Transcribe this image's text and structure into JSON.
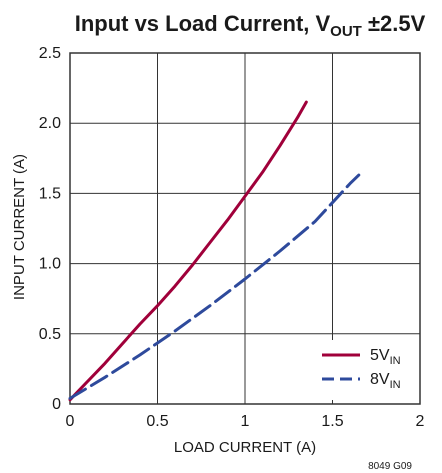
{
  "chart_data": {
    "type": "line",
    "title": {
      "prefix": "Input vs Load Current, V",
      "subscript": "OUT",
      "suffix": " ±2.5V"
    },
    "xlabel": "LOAD CURRENT (A)",
    "ylabel": "INPUT CURRENT (A)",
    "xlim": [
      0,
      2
    ],
    "ylim": [
      0,
      2.5
    ],
    "xticks": [
      0,
      0.5,
      1,
      1.5,
      2
    ],
    "xtick_labels": [
      "0",
      "0.5",
      "1",
      "1.5",
      "2"
    ],
    "yticks": [
      0,
      0.5,
      1.0,
      1.5,
      2.0,
      2.5
    ],
    "ytick_labels": [
      "0",
      "0.5",
      "1.0",
      "1.5",
      "2.0",
      "2.5"
    ],
    "grid": true,
    "legend_position": "bottom-right",
    "series": [
      {
        "name": "5V",
        "name_sub": "IN",
        "color": "#a0003a",
        "dash": "solid",
        "x": [
          0,
          0.1,
          0.2,
          0.3,
          0.4,
          0.5,
          0.6,
          0.7,
          0.8,
          0.9,
          1.0,
          1.1,
          1.2,
          1.3,
          1.35
        ],
        "y": [
          0.03,
          0.16,
          0.29,
          0.43,
          0.57,
          0.7,
          0.84,
          0.99,
          1.15,
          1.31,
          1.48,
          1.65,
          1.84,
          2.04,
          2.15
        ]
      },
      {
        "name": "8V",
        "name_sub": "IN",
        "color": "#2e4a9c",
        "dash": "dashed",
        "x": [
          0,
          0.2,
          0.4,
          0.6,
          0.8,
          1.0,
          1.2,
          1.4,
          1.6,
          1.65
        ],
        "y": [
          0.04,
          0.19,
          0.35,
          0.52,
          0.7,
          0.89,
          1.09,
          1.3,
          1.57,
          1.63
        ]
      }
    ]
  },
  "figure_id": "8049 G09"
}
